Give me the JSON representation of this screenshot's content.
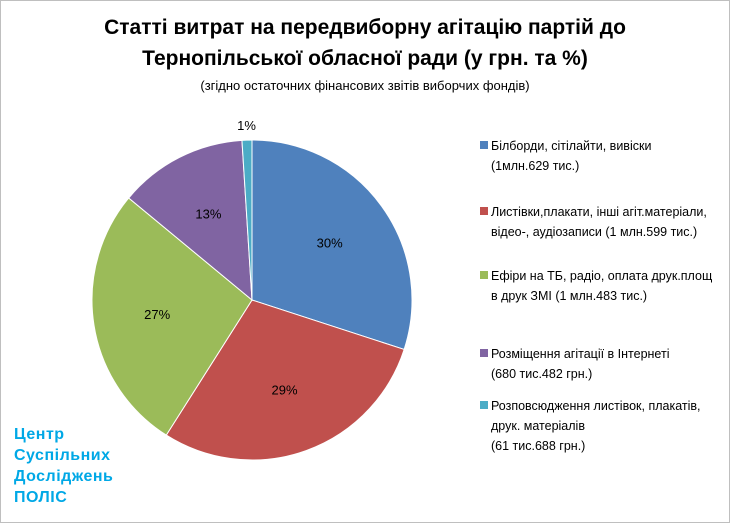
{
  "chart_data": {
    "type": "pie",
    "title_lines": [
      "Статті витрат на передвиборну агітацію партій до",
      "Тернопільської обласної ради (у грн. та %)"
    ],
    "subtitle": "(згідно остаточних фінансових звітів виборчих фондів)",
    "slices": [
      {
        "label": "Білборди, сітілайти, вивіски\n(1млн.629 тис.)",
        "value": 30,
        "pct_label": "30%",
        "color": "#4f81bd"
      },
      {
        "label": "Листівки,плакати, інші агіт.матеріали,\nвідео-, аудіозаписи (1 млн.599 тис.)",
        "value": 29,
        "pct_label": "29%",
        "color": "#c0504d"
      },
      {
        "label": "Ефіри на ТБ, радіо, оплата друк.площ\nв друк ЗМІ   (1 млн.483 тис.)",
        "value": 27,
        "pct_label": "27%",
        "color": "#9bbb59"
      },
      {
        "label": "Розміщення агітації в Інтернеті\n(680 тис.482 грн.)",
        "value": 13,
        "pct_label": "13%",
        "color": "#8064a2"
      },
      {
        "label": "Розповсюдження листівок, плакатів,\nдрук. матеріалів\n(61 тис.688 грн.)",
        "value": 1,
        "pct_label": "1%",
        "color": "#4bacc6"
      }
    ],
    "legend_position": "right"
  },
  "logo": {
    "lines": [
      "Центр",
      "Суспільних",
      "Досліджень",
      "ПОЛІС"
    ]
  }
}
